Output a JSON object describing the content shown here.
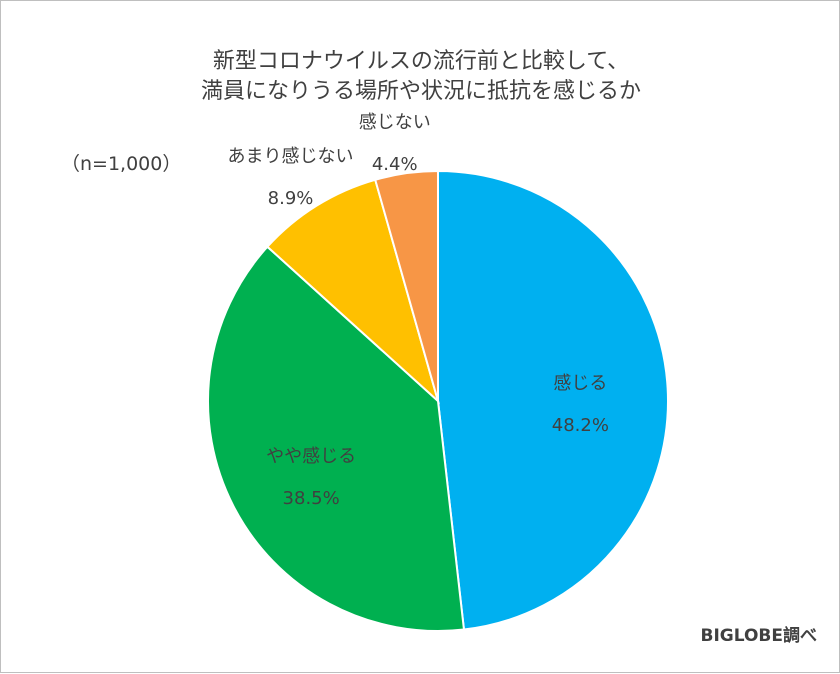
{
  "chart_data": {
    "type": "pie",
    "title_lines": [
      "新型コロナウイルスの流行前と比較して、",
      "満員になりうる場所や状況に抵抗を感じるか"
    ],
    "note": "（n=1,000）",
    "source": "BIGLOBE調べ",
    "slices": [
      {
        "label": "感じる",
        "value": 48.2,
        "display": "48.2%",
        "color": "#00B0F0"
      },
      {
        "label": "やや感じる",
        "value": 38.5,
        "display": "38.5%",
        "color": "#00B050"
      },
      {
        "label": "あまり感じない",
        "value": 8.9,
        "display": "8.9%",
        "color": "#FFC000"
      },
      {
        "label": "感じない",
        "value": 4.4,
        "display": "4.4%",
        "color": "#F79646"
      }
    ]
  }
}
